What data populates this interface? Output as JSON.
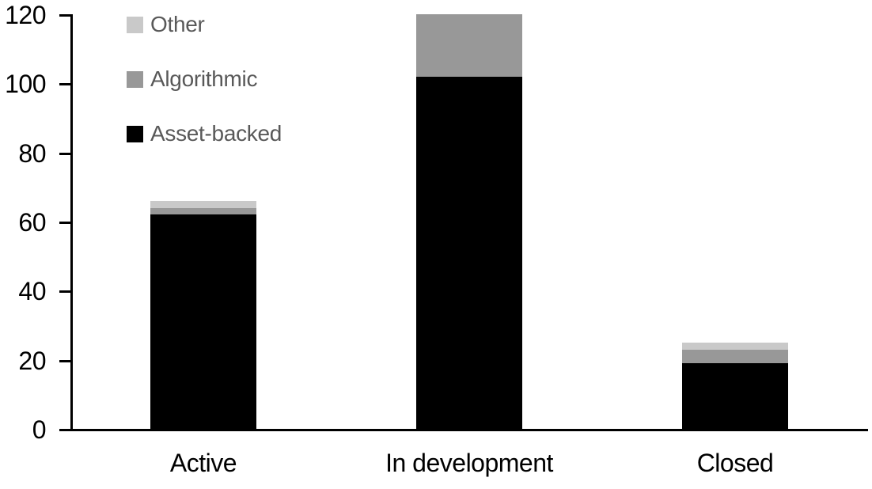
{
  "chart_data": {
    "type": "bar",
    "stacked": true,
    "title": "",
    "xlabel": "",
    "ylabel": "",
    "categories": [
      "Active",
      "In development",
      "Closed"
    ],
    "series": [
      {
        "name": "Asset-backed",
        "color": "#000000",
        "values": [
          62,
          102,
          19
        ]
      },
      {
        "name": "Algorithmic",
        "color": "#989898",
        "values": [
          2,
          18,
          4
        ]
      },
      {
        "name": "Other",
        "color": "#c9c9c9",
        "values": [
          2,
          0,
          2
        ]
      }
    ],
    "y_axis": {
      "min": 0,
      "max": 120,
      "tick_step": 20,
      "ticks": [
        0,
        20,
        40,
        60,
        80,
        100,
        120
      ]
    },
    "ylim": [
      0,
      120
    ],
    "grid": false,
    "legend": {
      "position": "top-left",
      "order": [
        "Other",
        "Algorithmic",
        "Asset-backed"
      ]
    }
  },
  "colors": {
    "background": "#ffffff",
    "axis": "#000000",
    "tick_label_text": "#000000",
    "category_label_text": "#000000",
    "legend_text": "#595959"
  }
}
